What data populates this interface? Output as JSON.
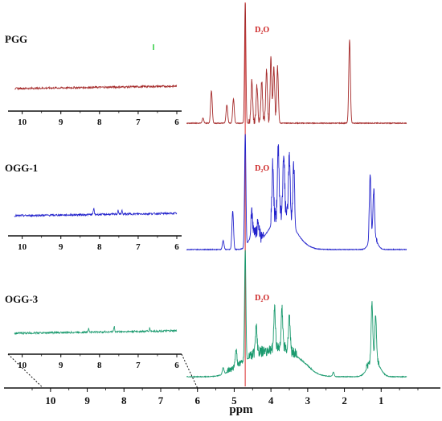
{
  "chart_data": {
    "type": "line",
    "title": "",
    "xlabel": "ppm",
    "ylabel": "",
    "x_reversed": true,
    "main_axis": {
      "xlim": [
        10.5,
        0
      ],
      "ticks": [
        10,
        9,
        8,
        7,
        6,
        5,
        4,
        3,
        2,
        1
      ]
    },
    "inset_axis": {
      "xlim": [
        10.2,
        6
      ],
      "ticks": [
        10,
        9,
        8,
        7,
        6
      ]
    },
    "reference_line": {
      "ppm": 4.7,
      "color": "#e05050"
    },
    "solvent_label": "D₂O",
    "solvent_color": "#cc2222",
    "series": [
      {
        "name": "PGG",
        "color": "#a52a2a",
        "inset_peaks": [],
        "main_peaks": [
          {
            "ppm": 5.85,
            "height": 0.04
          },
          {
            "ppm": 5.62,
            "height": 0.27
          },
          {
            "ppm": 5.2,
            "height": 0.15
          },
          {
            "ppm": 5.02,
            "height": 0.2
          },
          {
            "ppm": 4.7,
            "height": 1.0
          },
          {
            "ppm": 4.52,
            "height": 0.34
          },
          {
            "ppm": 4.38,
            "height": 0.31
          },
          {
            "ppm": 4.25,
            "height": 0.34
          },
          {
            "ppm": 4.12,
            "height": 0.44
          },
          {
            "ppm": 4.0,
            "height": 0.52
          },
          {
            "ppm": 3.92,
            "height": 0.44
          },
          {
            "ppm": 3.82,
            "height": 0.46
          },
          {
            "ppm": 1.86,
            "height": 0.69
          }
        ]
      },
      {
        "name": "OGG-1",
        "color": "#2222cc",
        "inset_peaks": [
          {
            "ppm": 8.15,
            "height": 0.2
          },
          {
            "ppm": 7.52,
            "height": 0.13
          },
          {
            "ppm": 7.42,
            "height": 0.11
          }
        ],
        "main_peaks": [
          {
            "ppm": 5.3,
            "height": 0.08
          },
          {
            "ppm": 5.04,
            "height": 0.34
          },
          {
            "ppm": 4.7,
            "height": 1.0
          },
          {
            "ppm": 4.52,
            "height": 0.2
          },
          {
            "ppm": 4.35,
            "height": 0.12
          },
          {
            "ppm": 3.95,
            "height": 0.48
          },
          {
            "ppm": 3.8,
            "height": 0.58
          },
          {
            "ppm": 3.65,
            "height": 0.55
          },
          {
            "ppm": 3.5,
            "height": 0.56
          },
          {
            "ppm": 3.38,
            "height": 0.51
          },
          {
            "ppm": 1.3,
            "height": 0.57
          },
          {
            "ppm": 1.2,
            "height": 0.4
          }
        ]
      },
      {
        "name": "OGG-3",
        "color": "#1a9a6e",
        "inset_peaks": [
          {
            "ppm": 8.28,
            "height": 0.14
          },
          {
            "ppm": 7.62,
            "height": 0.16
          },
          {
            "ppm": 6.7,
            "height": 0.09
          }
        ],
        "main_peaks": [
          {
            "ppm": 5.3,
            "height": 0.06
          },
          {
            "ppm": 4.95,
            "height": 0.16
          },
          {
            "ppm": 4.7,
            "height": 1.0
          },
          {
            "ppm": 4.4,
            "height": 0.25
          },
          {
            "ppm": 3.9,
            "height": 0.38
          },
          {
            "ppm": 3.7,
            "height": 0.36
          },
          {
            "ppm": 3.5,
            "height": 0.33
          },
          {
            "ppm": 2.3,
            "height": 0.04
          },
          {
            "ppm": 1.25,
            "height": 0.5
          },
          {
            "ppm": 1.15,
            "height": 0.4
          }
        ]
      }
    ]
  }
}
